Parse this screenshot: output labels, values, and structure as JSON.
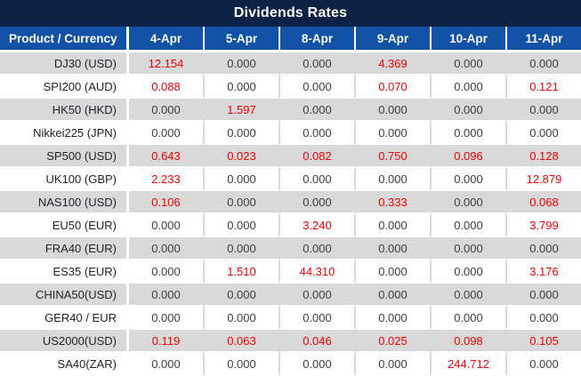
{
  "title": "Dividends Rates",
  "colors": {
    "title_bar": "#0b2244",
    "header_blue": "#1152a6",
    "row_alt_gray": "#d9d9d9",
    "grid_white": "#ffffff",
    "value_red": "#f40000",
    "value_dark": "#3d3d3d",
    "product_text": "#20242b"
  },
  "chart_data": {
    "type": "table",
    "title": "Dividends Rates",
    "product_header": "Product / Currency",
    "columns": [
      "4-Apr",
      "5-Apr",
      "8-Apr",
      "9-Apr",
      "10-Apr",
      "11-Apr"
    ],
    "rows": [
      {
        "product": "DJ30 (USD)",
        "values": [
          "12.154",
          "0.000",
          "0.000",
          "4.369",
          "0.000",
          "0.000"
        ]
      },
      {
        "product": "SPI200 (AUD)",
        "values": [
          "0.088",
          "0.000",
          "0.000",
          "0.070",
          "0.000",
          "0.121"
        ]
      },
      {
        "product": "HK50 (HKD)",
        "values": [
          "0.000",
          "1.597",
          "0.000",
          "0.000",
          "0.000",
          "0.000"
        ]
      },
      {
        "product": "Nikkei225 (JPN)",
        "values": [
          "0.000",
          "0.000",
          "0.000",
          "0.000",
          "0.000",
          "0.000"
        ]
      },
      {
        "product": "SP500 (USD)",
        "values": [
          "0.643",
          "0.023",
          "0.082",
          "0.750",
          "0.096",
          "0.128"
        ]
      },
      {
        "product": "UK100 (GBP)",
        "values": [
          "2.233",
          "0.000",
          "0.000",
          "0.000",
          "0.000",
          "12.879"
        ]
      },
      {
        "product": "NAS100 (USD)",
        "values": [
          "0.106",
          "0.000",
          "0.000",
          "0.333",
          "0.000",
          "0.068"
        ]
      },
      {
        "product": "EU50 (EUR)",
        "values": [
          "0.000",
          "0.000",
          "3.240",
          "0.000",
          "0.000",
          "3.799"
        ]
      },
      {
        "product": "FRA40 (EUR)",
        "values": [
          "0.000",
          "0.000",
          "0.000",
          "0.000",
          "0.000",
          "0.000"
        ]
      },
      {
        "product": "ES35 (EUR)",
        "values": [
          "0.000",
          "1.510",
          "44.310",
          "0.000",
          "0.000",
          "3.176"
        ]
      },
      {
        "product": "CHINA50(USD)",
        "values": [
          "0.000",
          "0.000",
          "0.000",
          "0.000",
          "0.000",
          "0.000"
        ]
      },
      {
        "product": "GER40 / EUR",
        "values": [
          "0.000",
          "0.000",
          "0.000",
          "0.000",
          "0.000",
          "0.000"
        ]
      },
      {
        "product": "US2000(USD)",
        "values": [
          "0.119",
          "0.063",
          "0.046",
          "0.025",
          "0.098",
          "0.105"
        ]
      },
      {
        "product": "SA40(ZAR)",
        "values": [
          "0.000",
          "0.000",
          "0.000",
          "0.000",
          "244.712",
          "0.000"
        ]
      }
    ]
  }
}
